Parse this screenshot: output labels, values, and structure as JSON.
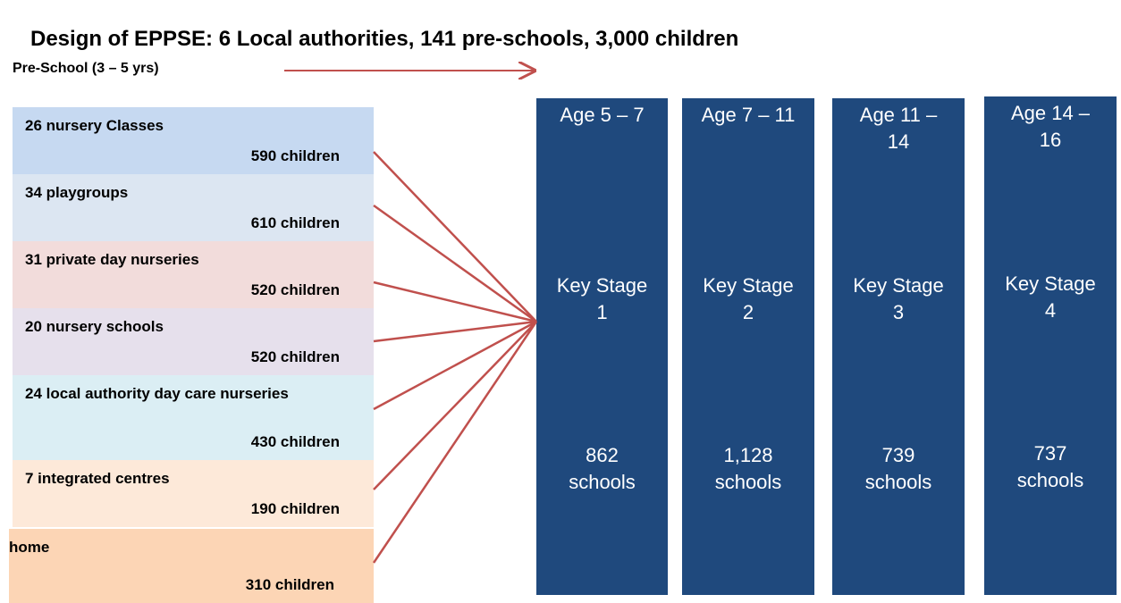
{
  "title": "Design of EPPSE: 6 Local authorities, 141 pre-schools, 3,000 children",
  "pre_school_label": "Pre-School (3 – 5 yrs)",
  "settings": [
    {
      "label": "26 nursery Classes",
      "children": "590 children"
    },
    {
      "label": "34 playgroups",
      "children": "610 children"
    },
    {
      "label": "31 private day nurseries",
      "children": "520 children"
    },
    {
      "label": "20 nursery schools",
      "children": "520 children"
    },
    {
      "label": "24 local authority day care nurseries",
      "children": "430 children"
    },
    {
      "label": "7 integrated centres",
      "children": "190 children"
    },
    {
      "label": "home",
      "children": "310 children"
    }
  ],
  "stages": [
    {
      "age": "Age 5 – 7",
      "stage": "Key Stage 1",
      "schools": "862 schools"
    },
    {
      "age": "Age 7 – 11",
      "stage": "Key Stage 2",
      "schools": "1,128 schools"
    },
    {
      "age": "Age 11 – 14",
      "stage": "Key Stage 3",
      "schools": "739 schools"
    },
    {
      "age": "Age 14 – 16",
      "stage": "Key Stage 4",
      "schools": "737 schools"
    }
  ]
}
